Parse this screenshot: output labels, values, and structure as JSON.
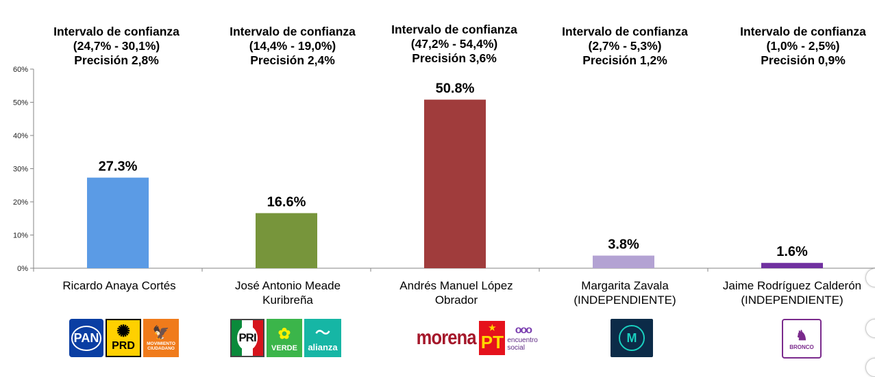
{
  "chart_data": {
    "type": "bar",
    "categories": [
      "Ricardo Anaya Cortés",
      "José Antonio Meade Kuribreña",
      "Andrés Manuel López Obrador",
      "Margarita Zavala (INDEPENDIENTE)",
      "Jaime Rodríguez Calderón (INDEPENDIENTE)"
    ],
    "values": [
      27.3,
      16.6,
      50.8,
      3.8,
      1.6
    ],
    "value_labels": [
      "27.3%",
      "16.6%",
      "50.8%",
      "3.8%",
      "1.6%"
    ],
    "colors": [
      "#5b9be5",
      "#77953b",
      "#a03c3c",
      "#b3a2d3",
      "#7030a0"
    ],
    "ylim": [
      0,
      60
    ],
    "yticks": [
      0,
      10,
      20,
      30,
      40,
      50,
      60
    ],
    "ytick_labels": [
      "0%",
      "10%",
      "20%",
      "30%",
      "40%",
      "50%",
      "60%"
    ],
    "grid": false,
    "title": "",
    "xlabel": "",
    "ylabel": ""
  },
  "candidates": [
    {
      "name_lines": [
        "Ricardo Anaya Cortés"
      ],
      "interval": {
        "line1": "Intervalo de confianza",
        "line2": "(24,7% - 30,1%)",
        "line3": "Precisión 2,8%"
      },
      "logos": [
        {
          "icon": "pan-logo",
          "text": "PAN"
        },
        {
          "icon": "prd-logo",
          "text": "PRD"
        },
        {
          "icon": "movimiento-ciudadano-logo",
          "text": "MOVIMIENTO CIUDADANO"
        }
      ]
    },
    {
      "name_lines": [
        "José Antonio Meade",
        "Kuribreña"
      ],
      "interval": {
        "line1": "Intervalo de confianza",
        "line2": "(14,4% - 19,0%)",
        "line3": "Precisión 2,4%"
      },
      "logos": [
        {
          "icon": "pri-logo",
          "text": "PRI"
        },
        {
          "icon": "verde-logo",
          "text": "VERDE"
        },
        {
          "icon": "nueva-alianza-logo",
          "text": "alianza"
        }
      ]
    },
    {
      "name_lines": [
        "Andrés Manuel López",
        "Obrador"
      ],
      "interval": {
        "line1": "Intervalo de confianza",
        "line2": "(47,2% - 54,4%)",
        "line3": "Precisión 3,6%"
      },
      "logos": [
        {
          "icon": "morena-logo",
          "text": "morena"
        },
        {
          "icon": "pt-logo",
          "text": "PT"
        },
        {
          "icon": "encuentro-social-logo",
          "text": "encuentro social"
        }
      ]
    },
    {
      "name_lines": [
        "Margarita Zavala",
        "(INDEPENDIENTE)"
      ],
      "interval": {
        "line1": "Intervalo de confianza",
        "line2": "(2,7% - 5,3%)",
        "line3": "Precisión 1,2%"
      },
      "logos": [
        {
          "icon": "margarita-zavala-logo",
          "text": "M"
        }
      ]
    },
    {
      "name_lines": [
        "Jaime Rodríguez Calderón",
        "(INDEPENDIENTE)"
      ],
      "interval": {
        "line1": "Intervalo de confianza",
        "line2": "(1,0% - 2,5%)",
        "line3": "Precisión 0,9%"
      },
      "logos": [
        {
          "icon": "bronco-logo",
          "text": "BRONCO"
        }
      ]
    }
  ]
}
